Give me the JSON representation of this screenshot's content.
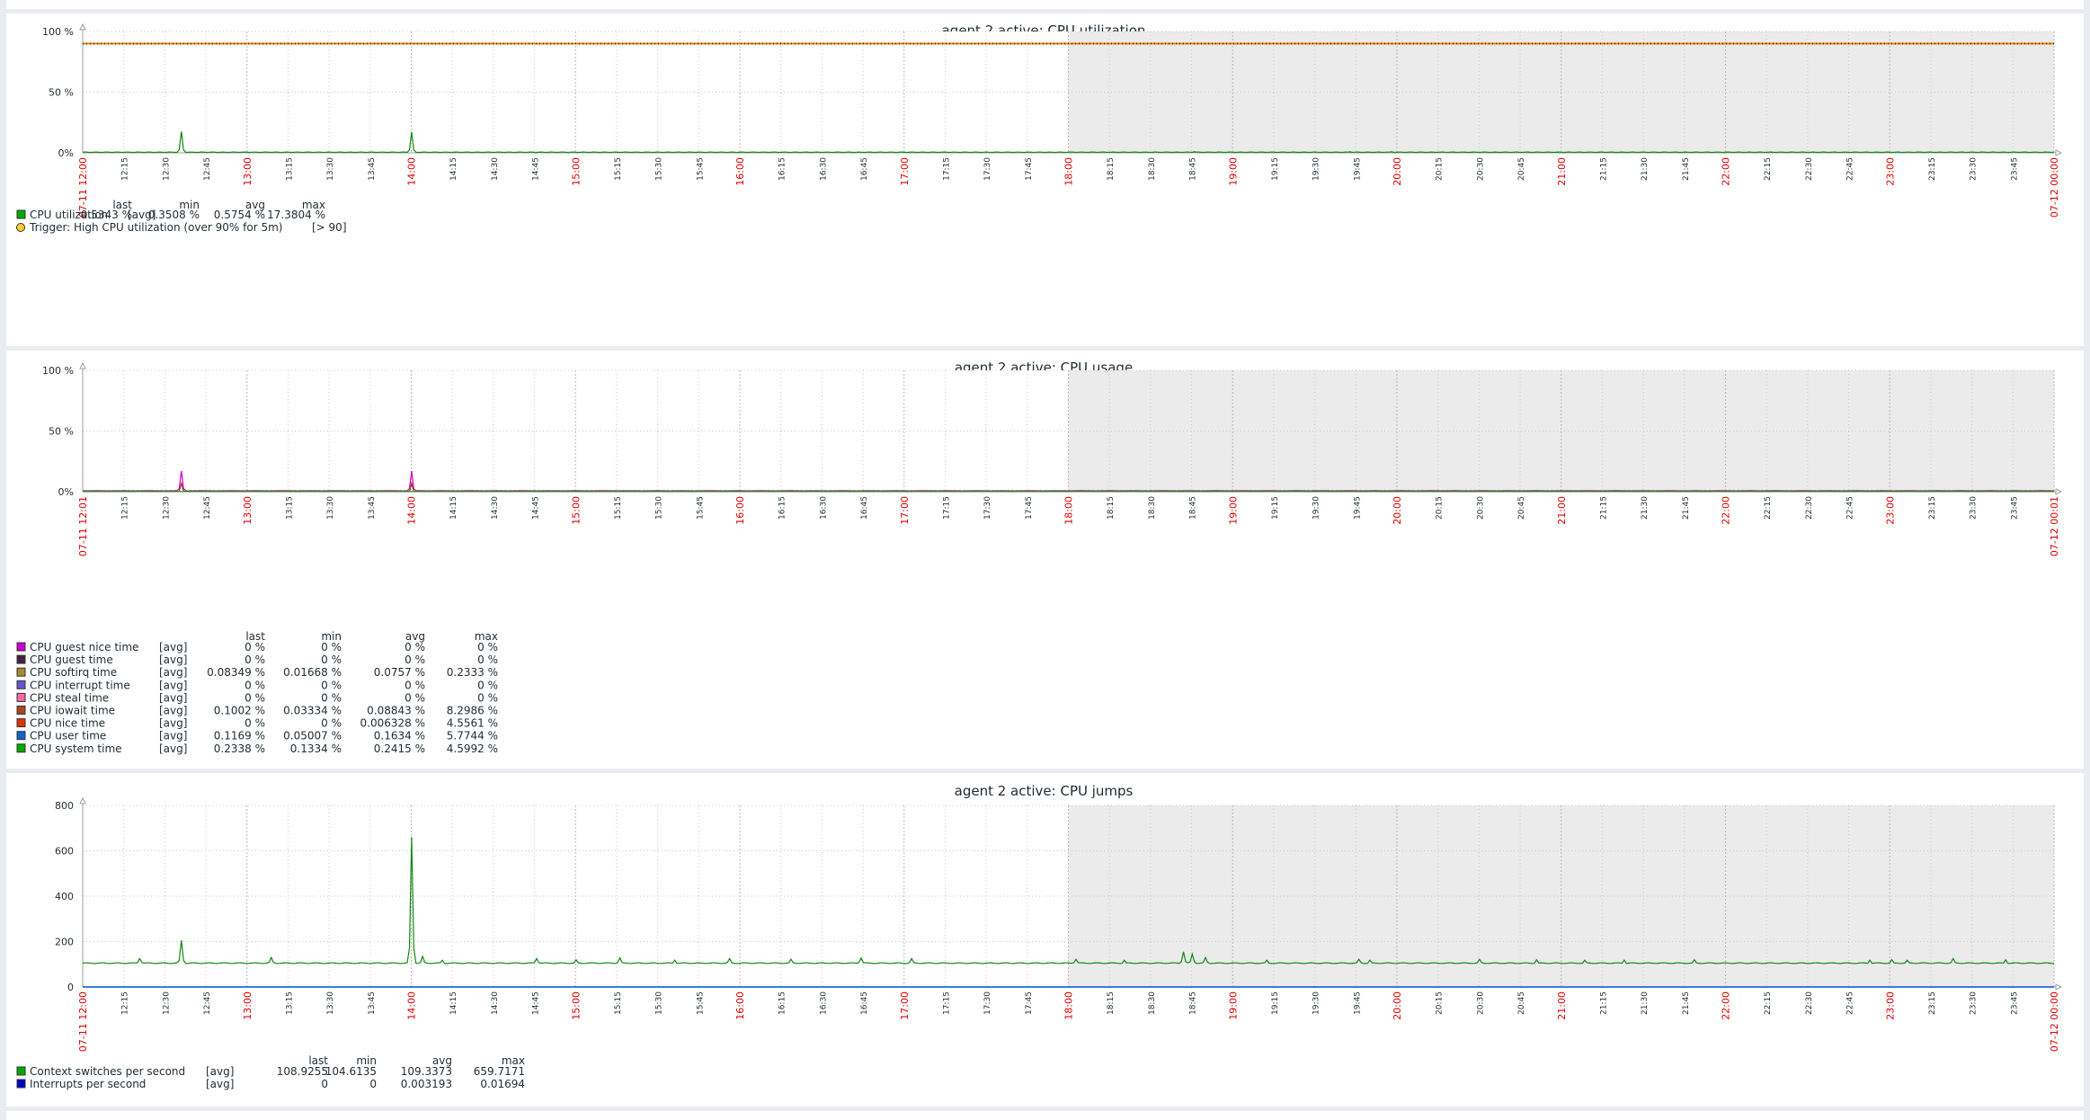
{
  "colors": {
    "red_tick": "#dd0000",
    "trigger_line": "#ff8000",
    "trigger_dots": "#333333",
    "gray_area": "#ebebeb",
    "grid": "#c8c8c8"
  },
  "chart_data": [
    {
      "type": "line",
      "title": "agent 2 active: CPU utilization",
      "y_ticks": [
        "100 %",
        "50 %",
        "0%"
      ],
      "ylim": [
        0,
        100
      ],
      "x_ticks": [
        "07-11 12:00",
        "12:15",
        "12:30",
        "12:45",
        "13:00",
        "13:15",
        "13:30",
        "13:45",
        "14:00",
        "14:15",
        "14:30",
        "14:45",
        "15:00",
        "15:15",
        "15:30",
        "15:45",
        "16:00",
        "16:15",
        "16:30",
        "16:45",
        "17:00",
        "17:15",
        "17:30",
        "17:45",
        "18:00",
        "18:15",
        "18:30",
        "18:45",
        "19:00",
        "19:15",
        "19:30",
        "19:45",
        "20:00",
        "20:15",
        "20:30",
        "20:45",
        "21:00",
        "21:15",
        "21:30",
        "21:45",
        "22:00",
        "22:15",
        "22:30",
        "22:45",
        "23:00",
        "23:15",
        "23:30",
        "23:45",
        "07-12 00:00"
      ],
      "legend_headers": [
        "last",
        "min",
        "avg",
        "max"
      ],
      "series": [
        {
          "name": "CPU utilization",
          "fn": "[avg]",
          "last": "0.5343 %",
          "min": "0.3508 %",
          "avg": "0.5754 %",
          "max": "17.3804 %",
          "color": "#00aa00",
          "baseline": 0.5,
          "spikes": [
            [
              45,
              17.4
            ],
            [
              150,
              17.2
            ],
            [
              507,
              0.9
            ],
            [
              578,
              0.8
            ],
            [
              597,
              0.8
            ],
            [
              659,
              0.7
            ]
          ]
        }
      ],
      "trigger": {
        "label": "Trigger: High CPU utilization (over 90% for 5m)",
        "cond": "[> 90]",
        "value": 90
      }
    },
    {
      "type": "area",
      "title": "agent 2 active: CPU usage",
      "y_ticks": [
        "100 %",
        "50 %",
        "0%"
      ],
      "ylim": [
        0,
        100
      ],
      "x_ticks": [
        "07-11 12:01",
        "12:15",
        "12:30",
        "12:45",
        "13:00",
        "13:15",
        "13:30",
        "13:45",
        "14:00",
        "14:15",
        "14:30",
        "14:45",
        "15:00",
        "15:15",
        "15:30",
        "15:45",
        "16:00",
        "16:15",
        "16:30",
        "16:45",
        "17:00",
        "17:15",
        "17:30",
        "17:45",
        "18:00",
        "18:15",
        "18:30",
        "18:45",
        "19:00",
        "19:15",
        "19:30",
        "19:45",
        "20:00",
        "20:15",
        "20:30",
        "20:45",
        "21:00",
        "21:15",
        "21:30",
        "21:45",
        "22:00",
        "22:15",
        "22:30",
        "22:45",
        "23:00",
        "23:15",
        "23:30",
        "23:45",
        "07-12 00:01"
      ],
      "legend_headers": [
        "last",
        "min",
        "avg",
        "max"
      ],
      "series": [
        {
          "name": "CPU guest nice time",
          "fn": "[avg]",
          "last": "0 %",
          "min": "0 %",
          "avg": "0 %",
          "max": "0 %",
          "color": "#cc00cc"
        },
        {
          "name": "CPU guest time",
          "fn": "[avg]",
          "last": "0 %",
          "min": "0 %",
          "avg": "0 %",
          "max": "0 %",
          "color": "#442244"
        },
        {
          "name": "CPU softirq time",
          "fn": "[avg]",
          "last": "0.08349 %",
          "min": "0.01668 %",
          "avg": "0.0757 %",
          "max": "0.2333 %",
          "color": "#aa8833"
        },
        {
          "name": "CPU interrupt time",
          "fn": "[avg]",
          "last": "0 %",
          "min": "0 %",
          "avg": "0 %",
          "max": "0 %",
          "color": "#6655cc"
        },
        {
          "name": "CPU steal time",
          "fn": "[avg]",
          "last": "0 %",
          "min": "0 %",
          "avg": "0 %",
          "max": "0 %",
          "color": "#ff66aa"
        },
        {
          "name": "CPU iowait time",
          "fn": "[avg]",
          "last": "0.1002 %",
          "min": "0.03334 %",
          "avg": "0.08843 %",
          "max": "8.2986 %",
          "color": "#aa4422"
        },
        {
          "name": "CPU nice time",
          "fn": "[avg]",
          "last": "0 %",
          "min": "0 %",
          "avg": "0.006328 %",
          "max": "4.5561 %",
          "color": "#dd3300"
        },
        {
          "name": "CPU user time",
          "fn": "[avg]",
          "last": "0.1169 %",
          "min": "0.05007 %",
          "avg": "0.1634 %",
          "max": "5.7744 %",
          "color": "#1166cc"
        },
        {
          "name": "CPU system time",
          "fn": "[avg]",
          "last": "0.2338 %",
          "min": "0.1334 %",
          "avg": "0.2415 %",
          "max": "4.5992 %",
          "color": "#00aa00"
        }
      ],
      "spikes": [
        [
          45,
          17
        ],
        [
          150,
          17
        ]
      ]
    },
    {
      "type": "line",
      "title": "agent 2 active: CPU jumps",
      "y_ticks": [
        "800",
        "600",
        "400",
        "200",
        "0"
      ],
      "ylim": [
        0,
        800
      ],
      "x_ticks": [
        "07-11 12:00",
        "12:15",
        "12:30",
        "12:45",
        "13:00",
        "13:15",
        "13:30",
        "13:45",
        "14:00",
        "14:15",
        "14:30",
        "14:45",
        "15:00",
        "15:15",
        "15:30",
        "15:45",
        "16:00",
        "16:15",
        "16:30",
        "16:45",
        "17:00",
        "17:15",
        "17:30",
        "17:45",
        "18:00",
        "18:15",
        "18:30",
        "18:45",
        "19:00",
        "19:15",
        "19:30",
        "19:45",
        "20:00",
        "20:15",
        "20:30",
        "20:45",
        "21:00",
        "21:15",
        "21:30",
        "21:45",
        "22:00",
        "22:15",
        "22:30",
        "22:45",
        "23:00",
        "23:15",
        "23:30",
        "23:45",
        "07-12 00:00"
      ],
      "legend_headers": [
        "last",
        "min",
        "avg",
        "max"
      ],
      "series": [
        {
          "name": "Context switches per second",
          "fn": "[avg]",
          "last": "108.9255",
          "min": "104.6135",
          "avg": "109.3373",
          "max": "659.7171",
          "color": "#00aa00",
          "baseline": 105,
          "spikes": [
            [
              26,
              125
            ],
            [
              45,
              205
            ],
            [
              86,
              130
            ],
            [
              150,
              660
            ],
            [
              155,
              135
            ],
            [
              164,
              118
            ],
            [
              207,
              125
            ],
            [
              225,
              120
            ],
            [
              245,
              128
            ],
            [
              270,
              118
            ],
            [
              295,
              125
            ],
            [
              323,
              122
            ],
            [
              355,
              128
            ],
            [
              378,
              125
            ],
            [
              453,
              122
            ],
            [
              475,
              118
            ],
            [
              502,
              155
            ],
            [
              506,
              145
            ],
            [
              512,
              130
            ],
            [
              540,
              118
            ],
            [
              582,
              122
            ],
            [
              587,
              118
            ],
            [
              637,
              122
            ],
            [
              663,
              120
            ],
            [
              685,
              118
            ],
            [
              703,
              118
            ],
            [
              735,
              120
            ],
            [
              815,
              118
            ],
            [
              825,
              120
            ],
            [
              832,
              118
            ],
            [
              853,
              125
            ],
            [
              877,
              120
            ]
          ]
        },
        {
          "name": "Interrupts per second",
          "fn": "[avg]",
          "last": "0",
          "min": "0",
          "avg": "0.003193",
          "max": "0.01694",
          "color": "#0000cc",
          "baseline": 0,
          "spikes": []
        }
      ]
    }
  ]
}
